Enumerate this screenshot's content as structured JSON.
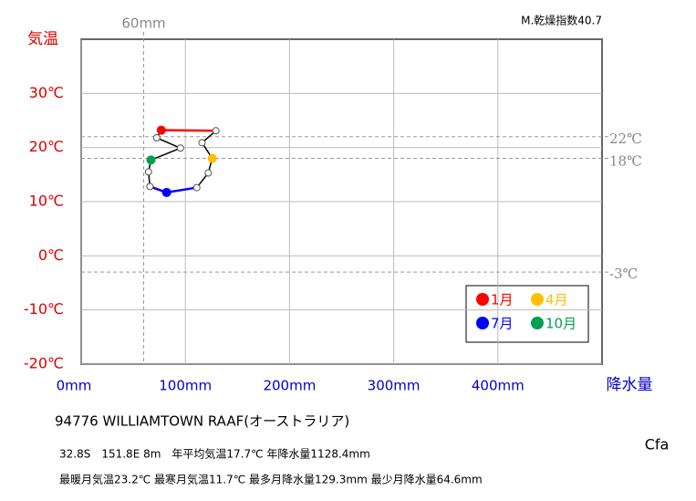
{
  "chart_data": {
    "type": "climograph",
    "annotation": "M.乾燥指数40.7",
    "y_axis_title": "気温",
    "x_axis_title": "降水量",
    "x": [
      76.9,
      129.3,
      116,
      125.8,
      122,
      111,
      82,
      66,
      64.6,
      67,
      95.3,
      72.5
    ],
    "values": [
      23.2,
      23.1,
      20.9,
      18.0,
      15.3,
      12.6,
      11.7,
      12.8,
      15.5,
      17.7,
      19.9,
      21.8
    ],
    "xlim": [
      0,
      500
    ],
    "ylim": [
      -20,
      40
    ],
    "xticks": [
      {
        "value": 0,
        "label": "0mm"
      },
      {
        "value": 100,
        "label": "100mm"
      },
      {
        "value": 200,
        "label": "200mm"
      },
      {
        "value": 300,
        "label": "300mm"
      },
      {
        "value": 400,
        "label": "400mm"
      }
    ],
    "yticks": [
      {
        "value": 30,
        "label": "30℃"
      },
      {
        "value": 20,
        "label": "20℃"
      },
      {
        "value": 10,
        "label": "10℃"
      },
      {
        "value": 0,
        "label": "0℃"
      },
      {
        "value": -10,
        "label": "-10℃"
      },
      {
        "value": -20,
        "label": "-20℃"
      }
    ],
    "grid": true,
    "reference_lines": [
      {
        "axis": "y",
        "value": 22,
        "label": "22℃"
      },
      {
        "axis": "y",
        "value": 18,
        "label": "18℃"
      },
      {
        "axis": "y",
        "value": -3,
        "label": "-3℃"
      },
      {
        "axis": "x",
        "value": 60,
        "label": "60mm"
      }
    ],
    "legend": [
      {
        "label": "1月",
        "color": "#ff0000"
      },
      {
        "label": "4月",
        "color": "#ffc000"
      },
      {
        "label": "7月",
        "color": "#0000ff"
      },
      {
        "label": "10月",
        "color": "#00a050"
      }
    ],
    "station": "94776  WILLIAMTOWN RAAF(オーストラリア)",
    "info": [
      "32.8S　151.8E 8m　年平均気温17.7℃ 年降水量1128.4mm",
      "最暖月気温23.2℃ 最寒月気温11.7℃ 最多月降水量129.3mm 最少月降水量64.6mm"
    ],
    "climate": "Cfa"
  }
}
